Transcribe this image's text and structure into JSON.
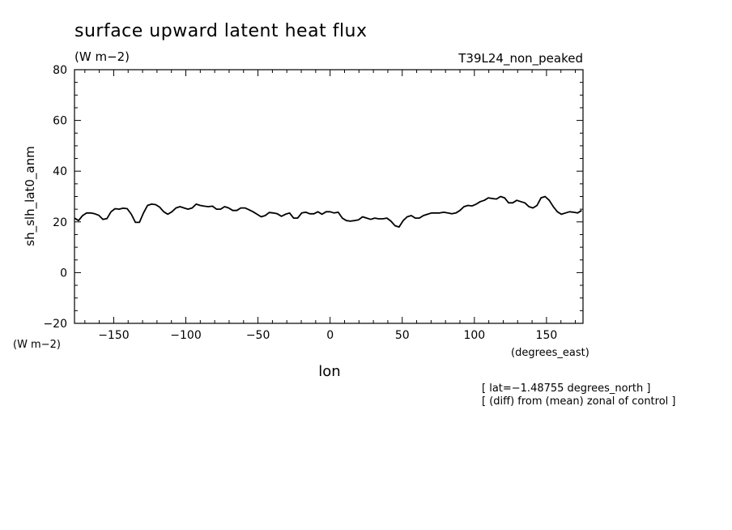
{
  "chart_data": {
    "type": "line",
    "title": "surface upward latent heat flux",
    "subtitle": "(W m−2)",
    "run_label": "T39L24_non_peaked",
    "ylabel": "sh_slh_lat0_anm",
    "yunits": "(W m−2)",
    "xlabel": "lon",
    "xunits": "(degrees_east)",
    "xlim": [
      -177.1875,
      175.3125
    ],
    "ylim": [
      -20,
      80
    ],
    "xticks": [
      -150,
      -100,
      -50,
      0,
      50,
      100,
      150
    ],
    "xtick_labels": [
      "−150",
      "−100",
      "−50",
      "0",
      "50",
      "100",
      "150"
    ],
    "yticks": [
      -20,
      0,
      20,
      40,
      60,
      80
    ],
    "ytick_labels": [
      "−20",
      "0",
      "20",
      "40",
      "60",
      "80"
    ],
    "grid": false,
    "notes": [
      "[ lat=−1.48755 degrees_north ]",
      "[ (diff) from (mean) zonal of control ]"
    ],
    "series": [
      {
        "x": [
          -177.19,
          -174.38,
          -171.56,
          -168.75,
          -165.94,
          -163.13,
          -160.31,
          -157.5,
          -154.69,
          -151.88,
          -149.06,
          -146.25,
          -143.44,
          -140.63,
          -137.81,
          -135,
          -132.19,
          -129.38,
          -126.56,
          -123.75,
          -120.94,
          -118.13,
          -115.31,
          -112.5,
          -109.69,
          -106.88,
          -104.06,
          -101.25,
          -98.44,
          -95.63,
          -92.81,
          -90,
          -87.19,
          -84.38,
          -81.56,
          -78.75,
          -75.94,
          -73.13,
          -70.31,
          -67.5,
          -64.69,
          -61.88,
          -59.06,
          -56.25,
          -53.44,
          -50.63,
          -47.81,
          -45,
          -42.19,
          -39.38,
          -36.56,
          -33.75,
          -30.94,
          -28.13,
          -25.31,
          -22.5,
          -19.69,
          -16.88,
          -14.06,
          -11.25,
          -8.44,
          -5.63,
          -2.81,
          0,
          2.81,
          5.63,
          8.44,
          11.25,
          14.06,
          16.88,
          19.69,
          22.5,
          25.31,
          28.13,
          30.94,
          33.75,
          36.56,
          39.38,
          42.19,
          45,
          47.81,
          50.63,
          53.44,
          56.25,
          59.06,
          61.88,
          64.69,
          67.5,
          70.31,
          73.13,
          75.94,
          78.75,
          81.56,
          84.38,
          87.19,
          90,
          92.81,
          95.63,
          98.44,
          101.25,
          104.06,
          106.88,
          109.69,
          112.5,
          115.31,
          118.13,
          120.94,
          123.75,
          126.56,
          129.38,
          132.19,
          135,
          137.81,
          140.63,
          143.44,
          146.25,
          149.06,
          151.88,
          154.69,
          157.5,
          160.31,
          163.13,
          165.94,
          168.75,
          171.56,
          174.38
        ],
        "values": [
          21.5,
          20.5,
          22.5,
          23.5,
          23.5,
          23.2,
          22.6,
          21.0,
          21.3,
          24.0,
          25.2,
          25.0,
          25.4,
          25.2,
          23.0,
          19.8,
          19.8,
          23.5,
          26.5,
          27.0,
          26.8,
          25.8,
          24.0,
          23.0,
          24.0,
          25.5,
          26.0,
          25.5,
          25.0,
          25.5,
          27.0,
          26.5,
          26.2,
          26.0,
          26.2,
          25.0,
          25.0,
          26.0,
          25.5,
          24.5,
          24.5,
          25.5,
          25.5,
          24.8,
          24.0,
          23.0,
          22.0,
          22.5,
          23.7,
          23.5,
          23.2,
          22.2,
          23.0,
          23.5,
          21.5,
          21.5,
          23.5,
          23.8,
          23.2,
          23.2,
          24.0,
          23.0,
          24.0,
          24.0,
          23.5,
          23.8,
          21.5,
          20.5,
          20.3,
          20.5,
          20.8,
          22.0,
          21.5,
          21.0,
          21.5,
          21.2,
          21.2,
          21.5,
          20.3,
          18.5,
          18.0,
          20.5,
          22.0,
          22.5,
          21.5,
          21.5,
          22.5,
          23.0,
          23.5,
          23.5,
          23.5,
          23.8,
          23.5,
          23.2,
          23.5,
          24.5,
          26.0,
          26.5,
          26.3,
          27.0,
          28.0,
          28.5,
          29.5,
          29.2,
          29.0,
          30.0,
          29.5,
          27.5,
          27.5,
          28.5,
          28.0,
          27.5,
          26.0,
          25.5,
          26.5,
          29.5,
          30.0,
          28.5,
          26.0,
          24.0,
          23.0,
          23.5,
          24.0,
          23.8,
          23.5,
          24.5
        ]
      }
    ]
  }
}
